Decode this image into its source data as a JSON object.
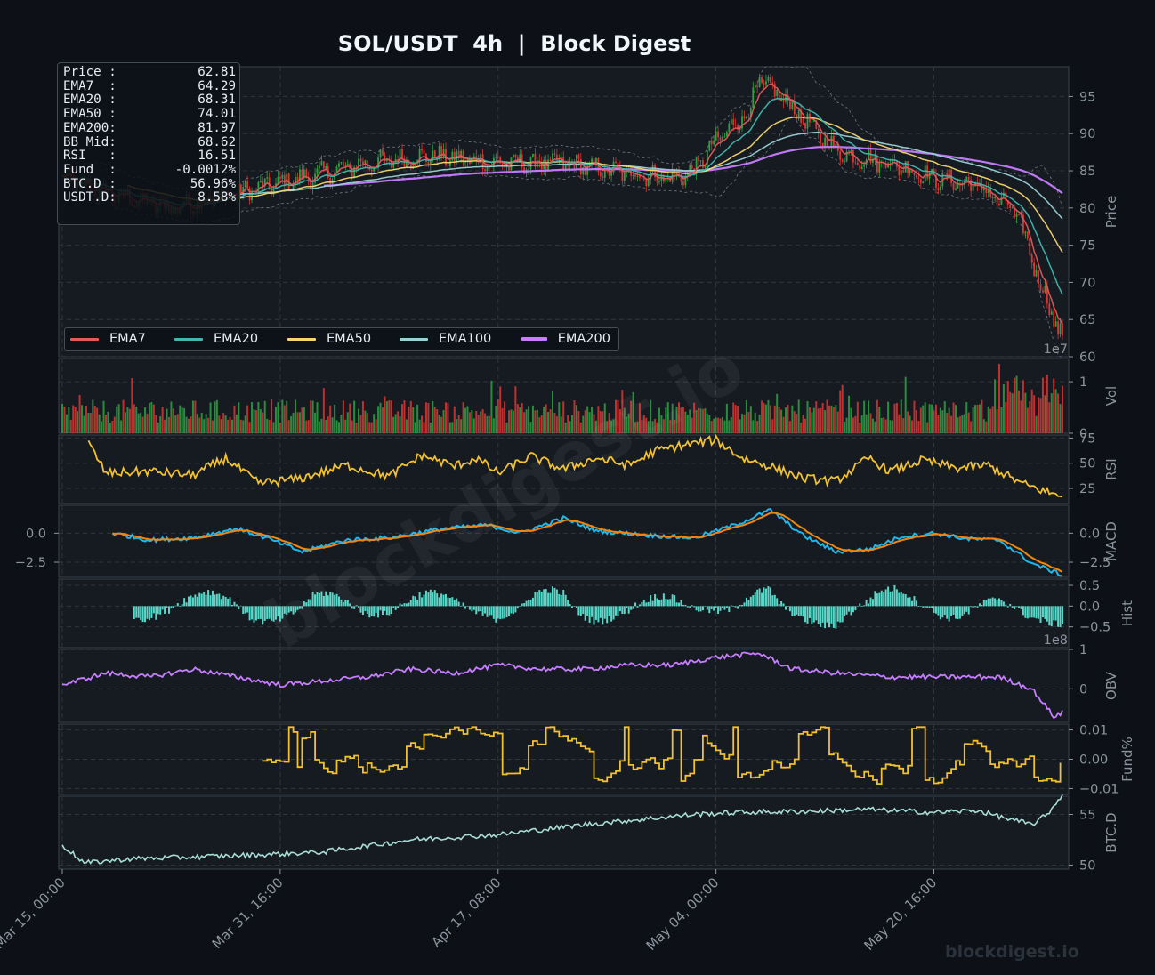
{
  "title": "SOL/USDT  4h  |  Block Digest",
  "watermark": "blockdigest.io",
  "footer_watermark": "blockdigest.io",
  "info_box": [
    {
      "label": "Price :",
      "value": "62.81"
    },
    {
      "label": "EMA7  :",
      "value": "64.29"
    },
    {
      "label": "EMA20 :",
      "value": "68.31"
    },
    {
      "label": "EMA50 :",
      "value": "74.01"
    },
    {
      "label": "EMA200:",
      "value": "81.97"
    },
    {
      "label": "BB Mid:",
      "value": "68.62"
    },
    {
      "label": "RSI   :",
      "value": "16.51"
    },
    {
      "label": "Fund  :",
      "value": "-0.0012%"
    },
    {
      "label": "BTC.D :",
      "value": "56.96%"
    },
    {
      "label": "USDT.D:",
      "value": "8.58%"
    }
  ],
  "legend": [
    {
      "name": "EMA7",
      "color": "#e05b5b"
    },
    {
      "name": "EMA20",
      "color": "#3fb8af"
    },
    {
      "name": "EMA50",
      "color": "#f5d76e"
    },
    {
      "name": "EMA100",
      "color": "#9ad1d4"
    },
    {
      "name": "EMA200",
      "color": "#c77dff"
    }
  ],
  "colors": {
    "background": "#0d1117",
    "panel": "#161b22",
    "grid": "#30363d",
    "up": "#2ea043",
    "down": "#da3633",
    "rsi": "#f2c12e",
    "macd": "#1fb6e8",
    "signal": "#f0850f",
    "hist": "#58d8c8",
    "obv": "#c77dff",
    "fund": "#f2c12e",
    "btcd": "#a9dcd6",
    "text": "#8b949e"
  },
  "chart_data": {
    "type": "line",
    "x_tick_labels": [
      "Mar 15, 00:00",
      "Mar 31, 16:00",
      "Apr 17, 08:00",
      "May 04, 00:00",
      "May 20, 16:00"
    ],
    "n_candles": 460,
    "panels": [
      {
        "id": "price",
        "ylabel": "Price",
        "ylim": [
          60,
          99
        ],
        "ticks": [
          "60",
          "65",
          "70",
          "75",
          "80",
          "85",
          "90",
          "95"
        ],
        "offset_label": "1e7",
        "price_path": [
          [
            0,
            84
          ],
          [
            20,
            82
          ],
          [
            50,
            80
          ],
          [
            80,
            82
          ],
          [
            110,
            84
          ],
          [
            140,
            86
          ],
          [
            170,
            87
          ],
          [
            200,
            86
          ],
          [
            230,
            86
          ],
          [
            250,
            85
          ],
          [
            280,
            84
          ],
          [
            290,
            85
          ],
          [
            300,
            89
          ],
          [
            315,
            93
          ],
          [
            320,
            97
          ],
          [
            330,
            95
          ],
          [
            340,
            92
          ],
          [
            350,
            89
          ],
          [
            360,
            87
          ],
          [
            380,
            86
          ],
          [
            400,
            84
          ],
          [
            420,
            83
          ],
          [
            430,
            81
          ],
          [
            435,
            80
          ],
          [
            440,
            78
          ],
          [
            445,
            73
          ],
          [
            450,
            69
          ],
          [
            455,
            65
          ],
          [
            459,
            62.81
          ]
        ],
        "ema_last": {
          "EMA7": 64.29,
          "EMA20": 68.31,
          "EMA50": 74.01,
          "EMA100": 78.5,
          "EMA200": 81.97
        }
      },
      {
        "id": "volume",
        "ylabel": "Vol",
        "ylim": [
          0,
          1.45
        ],
        "ticks": [
          "0",
          "1"
        ]
      },
      {
        "id": "rsi",
        "ylabel": "RSI",
        "ylim": [
          10,
          78
        ],
        "ticks": [
          "25",
          "50",
          "75"
        ],
        "rsi_path": [
          [
            12,
            70
          ],
          [
            20,
            40
          ],
          [
            40,
            42
          ],
          [
            60,
            38
          ],
          [
            75,
            55
          ],
          [
            90,
            30
          ],
          [
            110,
            35
          ],
          [
            130,
            48
          ],
          [
            150,
            37
          ],
          [
            165,
            58
          ],
          [
            180,
            47
          ],
          [
            190,
            55
          ],
          [
            200,
            40
          ],
          [
            215,
            57
          ],
          [
            230,
            44
          ],
          [
            245,
            55
          ],
          [
            260,
            48
          ],
          [
            272,
            62
          ],
          [
            285,
            68
          ],
          [
            300,
            73
          ],
          [
            312,
            55
          ],
          [
            325,
            47
          ],
          [
            340,
            35
          ],
          [
            355,
            32
          ],
          [
            370,
            55
          ],
          [
            380,
            42
          ],
          [
            395,
            53
          ],
          [
            410,
            45
          ],
          [
            425,
            48
          ],
          [
            440,
            30
          ],
          [
            459,
            16.51
          ]
        ]
      },
      {
        "id": "macd",
        "ylabel": "MACD",
        "ylim": [
          -3.8,
          2.4
        ],
        "ticks": [
          "−2.5",
          "0.0"
        ],
        "macd_path": [
          [
            23,
            0
          ],
          [
            40,
            -0.6
          ],
          [
            60,
            -0.4
          ],
          [
            80,
            0.4
          ],
          [
            95,
            -0.5
          ],
          [
            110,
            -1.6
          ],
          [
            130,
            -0.6
          ],
          [
            150,
            -0.4
          ],
          [
            175,
            0.4
          ],
          [
            195,
            0.7
          ],
          [
            210,
            0.0
          ],
          [
            230,
            1.3
          ],
          [
            245,
            0.2
          ],
          [
            270,
            -0.2
          ],
          [
            290,
            -0.4
          ],
          [
            310,
            0.8
          ],
          [
            325,
            2.0
          ],
          [
            340,
            -0.2
          ],
          [
            355,
            -1.6
          ],
          [
            370,
            -1.4
          ],
          [
            385,
            -0.3
          ],
          [
            400,
            0.0
          ],
          [
            415,
            -0.5
          ],
          [
            430,
            -0.6
          ],
          [
            445,
            -2.6
          ],
          [
            459,
            -3.6
          ]
        ]
      },
      {
        "id": "hist",
        "ylabel": "Hist",
        "ylim": [
          -1.0,
          0.65
        ],
        "ticks": [
          "−0.5",
          "0.0",
          "0.5"
        ],
        "offset_label": "1e8"
      },
      {
        "id": "obv",
        "ylabel": "OBV",
        "ylim": [
          -0.85,
          1.0
        ],
        "ticks": [
          "0",
          "1"
        ],
        "obv_path": [
          [
            0,
            0.1
          ],
          [
            20,
            0.4
          ],
          [
            40,
            0.3
          ],
          [
            60,
            0.5
          ],
          [
            80,
            0.3
          ],
          [
            100,
            0.1
          ],
          [
            120,
            0.2
          ],
          [
            140,
            0.3
          ],
          [
            160,
            0.5
          ],
          [
            180,
            0.4
          ],
          [
            200,
            0.6
          ],
          [
            220,
            0.5
          ],
          [
            240,
            0.5
          ],
          [
            260,
            0.6
          ],
          [
            280,
            0.6
          ],
          [
            300,
            0.8
          ],
          [
            320,
            0.9
          ],
          [
            335,
            0.5
          ],
          [
            355,
            0.4
          ],
          [
            380,
            0.3
          ],
          [
            400,
            0.3
          ],
          [
            430,
            0.3
          ],
          [
            445,
            0.0
          ],
          [
            455,
            -0.7
          ],
          [
            459,
            -0.6
          ]
        ]
      },
      {
        "id": "fund",
        "ylabel": "Fund%",
        "ylim": [
          -0.012,
          0.012
        ],
        "ticks": [
          "−0.01",
          "0.00",
          "0.01"
        ]
      },
      {
        "id": "btcd",
        "ylabel": "BTC.D",
        "ylim": [
          49.6,
          56.8
        ],
        "ticks": [
          "50",
          "55"
        ],
        "btcd_path": [
          [
            0,
            52
          ],
          [
            10,
            50.2
          ],
          [
            30,
            50.6
          ],
          [
            60,
            50.8
          ],
          [
            90,
            51.0
          ],
          [
            120,
            51.3
          ],
          [
            160,
            52.5
          ],
          [
            200,
            53.0
          ],
          [
            240,
            54.0
          ],
          [
            270,
            54.6
          ],
          [
            290,
            55.0
          ],
          [
            310,
            55.2
          ],
          [
            340,
            55.3
          ],
          [
            370,
            55.5
          ],
          [
            400,
            55.2
          ],
          [
            420,
            55.4
          ],
          [
            435,
            54.5
          ],
          [
            445,
            54.0
          ],
          [
            452,
            55.0
          ],
          [
            459,
            56.96
          ]
        ]
      }
    ]
  }
}
